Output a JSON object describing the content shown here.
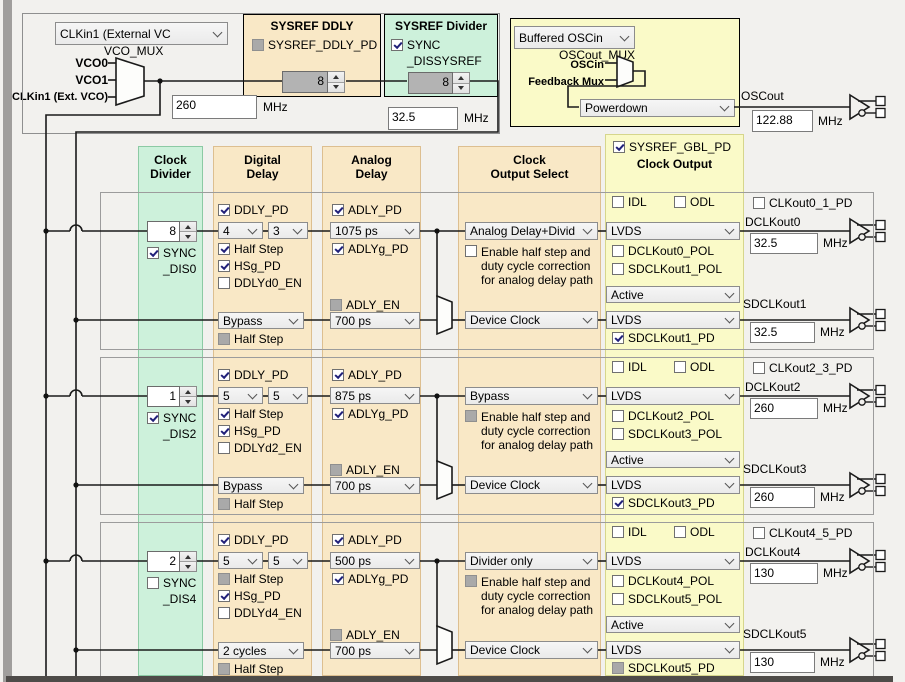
{
  "window": {
    "bg": "#f2f1ee",
    "chrome_left": "#a09e9c",
    "chrome_bottom": "#4e4b48"
  },
  "colors": {
    "panel_orange": "#f9e8c6",
    "panel_green": "#cdf1db",
    "panel_yellow": "#fafac8",
    "wire": "#1a1a1a",
    "check": "#21217a"
  },
  "top_left": {
    "clkin_select": "CLKin1 (External VC",
    "vco_mux_label": "VCO_MUX",
    "input_vco0": "VCO0",
    "input_vco1": "VCO1",
    "input_clkin1": "CLKin1 (Ext. VCO)",
    "vco_freq": "260",
    "vco_freq_unit": "MHz"
  },
  "sysref_ddly": {
    "title": "SYSREF DDLY",
    "pd_label": "SYSREF_DDLY_PD",
    "pd_state": "disabled",
    "divider_value": "8"
  },
  "sysref_divider": {
    "title": "SYSREF Divider",
    "sync_label_line1": "SYNC",
    "sync_label_line2": "_DISSYSREF",
    "sync_state": "checked",
    "divider_value": "8",
    "freq": "32.5",
    "freq_unit": "MHz"
  },
  "oscin": {
    "mux_select": "Buffered OSCin",
    "mux_label": "OSCout_MUX",
    "input_oscin": "OSCin",
    "input_feedback": "Feedback Mux",
    "mode_select": "Powerdown",
    "out_label": "OSCout",
    "freq": "122.88",
    "freq_unit": "MHz"
  },
  "headers": {
    "clock_divider_line1": "Clock",
    "clock_divider_line2": "Divider",
    "digital_delay_line1": "Digital",
    "digital_delay_line2": "Delay",
    "analog_delay_line1": "Analog",
    "analog_delay_line2": "Delay",
    "clock_output_select_line1": "Clock",
    "clock_output_select_line2": "Output Select",
    "sysref_gbl_pd": "SYSREF_GBL_PD",
    "sysref_gbl_pd_state": "checked",
    "clock_output": "Clock Output"
  },
  "labels": {
    "enable_l1": "Enable half step and",
    "enable_l2": "duty cycle correction",
    "enable_l3": "for analog delay path"
  },
  "channels": [
    {
      "divider": "8",
      "sync_l1": "SYNC",
      "sync_l2": "_DIS0",
      "sync_state": "checked",
      "ddly_pd": "DDLY_PD",
      "ddly_pd_state": "checked",
      "dd1": "4",
      "dd2": "3",
      "half_step": "Half Step",
      "half_step_state": "checked",
      "hsg_pd": "HSg_PD",
      "hsg_pd_state": "checked",
      "ddlyd_en": "DDLYd0_EN",
      "ddlyd_en_state": "unchecked",
      "sysref_dd": "Bypass",
      "half_step2": "Half Step",
      "half_step2_state": "disabled",
      "adly_pd": "ADLY_PD",
      "adly_pd_state": "checked",
      "adly": "1075 ps",
      "adlyg_pd": "ADLYg_PD",
      "adlyg_pd_state": "checked",
      "adly_en": "ADLY_EN",
      "adly_en_state": "disabled",
      "adly2": "700 ps",
      "dclk_src": "Analog Delay+Divid",
      "enable_state": "unchecked",
      "sclk_src": "Device Clock",
      "idl": "IDL",
      "idl_state": "unchecked",
      "odl": "ODL",
      "odl_state": "unchecked",
      "dclk_fmt": "LVDS",
      "dclk_pol": "DCLKout0_POL",
      "dclk_pol_state": "unchecked",
      "sclk_pol": "SDCLKout1_POL",
      "sclk_pol_state": "unchecked",
      "active": "Active",
      "sclk_fmt": "LVDS",
      "sclk_pd": "SDCLKout1_PD",
      "sclk_pd_state": "checked",
      "pair_pd": "CLKout0_1_PD",
      "pair_pd_state": "unchecked",
      "dclk_name": "DCLKout0",
      "dclk_freq": "32.5",
      "sclk_name": "SDCLKout1",
      "sclk_freq": "32.5",
      "freq_unit": "MHz"
    },
    {
      "divider": "1",
      "sync_l1": "SYNC",
      "sync_l2": "_DIS2",
      "sync_state": "checked",
      "ddly_pd": "DDLY_PD",
      "ddly_pd_state": "checked",
      "dd1": "5",
      "dd2": "5",
      "half_step": "Half Step",
      "half_step_state": "checked",
      "hsg_pd": "HSg_PD",
      "hsg_pd_state": "checked",
      "ddlyd_en": "DDLYd2_EN",
      "ddlyd_en_state": "unchecked",
      "sysref_dd": "Bypass",
      "half_step2": "Half Step",
      "half_step2_state": "disabled",
      "adly_pd": "ADLY_PD",
      "adly_pd_state": "checked",
      "adly": "875 ps",
      "adlyg_pd": "ADLYg_PD",
      "adlyg_pd_state": "checked",
      "adly_en": "ADLY_EN",
      "adly_en_state": "disabled",
      "adly2": "700 ps",
      "dclk_src": "Bypass",
      "enable_state": "disabled",
      "sclk_src": "Device Clock",
      "idl": "IDL",
      "idl_state": "unchecked",
      "odl": "ODL",
      "odl_state": "unchecked",
      "dclk_fmt": "LVDS",
      "dclk_pol": "DCLKout2_POL",
      "dclk_pol_state": "unchecked",
      "sclk_pol": "SDCLKout3_POL",
      "sclk_pol_state": "unchecked",
      "active": "Active",
      "sclk_fmt": "LVDS",
      "sclk_pd": "SDCLKout3_PD",
      "sclk_pd_state": "checked",
      "pair_pd": "CLKout2_3_PD",
      "pair_pd_state": "unchecked",
      "dclk_name": "DCLKout2",
      "dclk_freq": "260",
      "sclk_name": "SDCLKout3",
      "sclk_freq": "260",
      "freq_unit": "MHz"
    },
    {
      "divider": "2",
      "sync_l1": "SYNC",
      "sync_l2": "_DIS4",
      "sync_state": "unchecked",
      "ddly_pd": "DDLY_PD",
      "ddly_pd_state": "checked",
      "dd1": "5",
      "dd2": "5",
      "half_step": "Half Step",
      "half_step_state": "disabled",
      "hsg_pd": "HSg_PD",
      "hsg_pd_state": "checked",
      "ddlyd_en": "DDLYd4_EN",
      "ddlyd_en_state": "unchecked",
      "sysref_dd": "2 cycles",
      "half_step2": "Half Step",
      "half_step2_state": "disabled",
      "adly_pd": "ADLY_PD",
      "adly_pd_state": "checked",
      "adly": "500 ps",
      "adlyg_pd": "ADLYg_PD",
      "adlyg_pd_state": "checked",
      "adly_en": "ADLY_EN",
      "adly_en_state": "disabled",
      "adly2": "700 ps",
      "dclk_src": "Divider only",
      "enable_state": "disabled",
      "sclk_src": "Device Clock",
      "idl": "IDL",
      "idl_state": "unchecked",
      "odl": "ODL",
      "odl_state": "unchecked",
      "dclk_fmt": "LVDS",
      "dclk_pol": "DCLKout4_POL",
      "dclk_pol_state": "unchecked",
      "sclk_pol": "SDCLKout5_POL",
      "sclk_pol_state": "unchecked",
      "active": "Active",
      "sclk_fmt": "LVDS",
      "sclk_pd": "SDCLKout5_PD",
      "sclk_pd_state": "disabled",
      "pair_pd": "CLKout4_5_PD",
      "pair_pd_state": "unchecked",
      "dclk_name": "DCLKout4",
      "dclk_freq": "130",
      "sclk_name": "SDCLKout5",
      "sclk_freq": "130",
      "freq_unit": "MHz"
    }
  ]
}
